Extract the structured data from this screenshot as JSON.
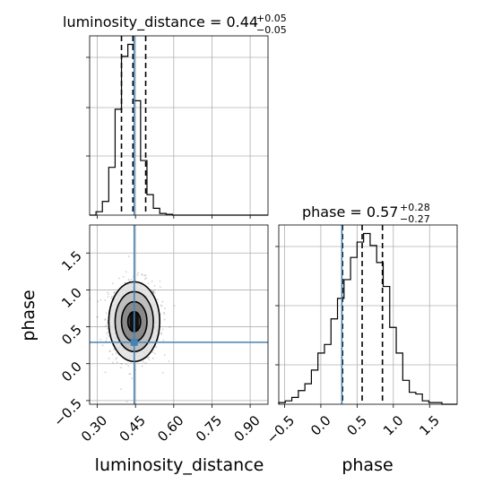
{
  "chart_data": {
    "type": "corner",
    "parameters": [
      "luminosity_distance",
      "phase"
    ],
    "truths": {
      "luminosity_distance": 0.445,
      "phase": 0.29
    },
    "truth_color": "#4682b4",
    "hist_color": "#000000",
    "luminosity_distance_hist": {
      "title_main": "luminosity_distance = 0.44",
      "title_sup": "+0.05",
      "title_sub": "−0.05",
      "xlim": [
        0.27,
        0.97
      ],
      "bin_edges": [
        0.27,
        0.295,
        0.32,
        0.345,
        0.37,
        0.395,
        0.42,
        0.445,
        0.47,
        0.495,
        0.52,
        0.545,
        0.57,
        0.595,
        0.62,
        0.645,
        0.67,
        0.695,
        0.72,
        0.745,
        0.77,
        0.795,
        0.82,
        0.845,
        0.87,
        0.895,
        0.92,
        0.945,
        0.97
      ],
      "counts": [
        0,
        0.02,
        0.08,
        0.28,
        0.62,
        0.93,
        1.0,
        0.67,
        0.32,
        0.12,
        0.04,
        0.01,
        0.005,
        0,
        0,
        0,
        0,
        0,
        0,
        0,
        0,
        0,
        0,
        0,
        0,
        0,
        0,
        0
      ],
      "quantiles": [
        0.395,
        0.44,
        0.49
      ],
      "ylim": [
        0,
        1.05
      ]
    },
    "phase_hist": {
      "title_main": "phase = 0.57",
      "title_sup": "+0.28",
      "title_sub": "−0.27",
      "xlim": [
        -0.58,
        1.88
      ],
      "bin_edges": [
        -0.58,
        -0.49,
        -0.4,
        -0.31,
        -0.22,
        -0.13,
        -0.04,
        0.05,
        0.14,
        0.23,
        0.32,
        0.41,
        0.5,
        0.59,
        0.68,
        0.77,
        0.86,
        0.95,
        1.04,
        1.13,
        1.22,
        1.31,
        1.4,
        1.49,
        1.58,
        1.67,
        1.76,
        1.88
      ],
      "counts": [
        0.01,
        0.02,
        0.04,
        0.08,
        0.12,
        0.2,
        0.3,
        0.35,
        0.5,
        0.62,
        0.73,
        0.86,
        0.95,
        1.0,
        0.93,
        0.83,
        0.69,
        0.45,
        0.3,
        0.14,
        0.07,
        0.06,
        0.02,
        0.01,
        0.01,
        0.0,
        0.0
      ],
      "quantiles": [
        0.3,
        0.57,
        0.85
      ],
      "ylim": [
        0,
        1.05
      ],
      "xticks": [
        -0.5,
        0.0,
        0.5,
        1.0,
        1.5
      ],
      "xtick_labels": [
        "−0.5",
        "0.0",
        "0.5",
        "1.0",
        "1.5"
      ]
    },
    "joint": {
      "xlim": [
        0.27,
        0.97
      ],
      "ylim": [
        -0.55,
        1.88
      ],
      "xticks": [
        0.3,
        0.45,
        0.6,
        0.75,
        0.9
      ],
      "xtick_labels": [
        "0.30",
        "0.45",
        "0.60",
        "0.75",
        "0.90"
      ],
      "yticks": [
        -0.5,
        0.0,
        0.5,
        1.0,
        1.5
      ],
      "ytick_labels": [
        "−0.5",
        "0.0",
        "0.5",
        "1.0",
        "1.5"
      ],
      "center": [
        0.445,
        0.57
      ],
      "contour_sigma_levels": [
        0.5,
        1.0,
        1.5,
        2.0
      ],
      "sigma": [
        0.05,
        0.27
      ]
    },
    "xlabel_joint": "luminosity_distance",
    "ylabel_joint": "phase",
    "xlabel_phase": "phase",
    "grid": true
  }
}
